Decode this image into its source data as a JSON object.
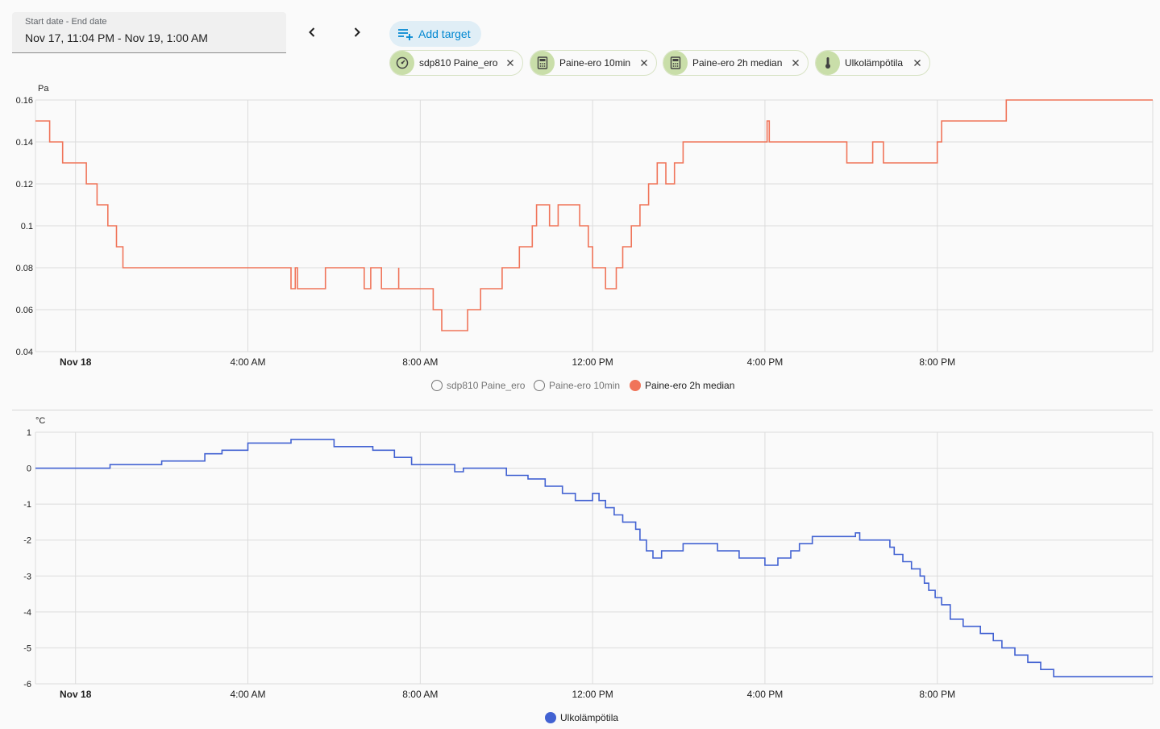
{
  "date_range": {
    "label": "Start date - End date",
    "value": "Nov 17, 11:04 PM - Nov 19, 1:00 AM"
  },
  "toolbar": {
    "add_target_label": "Add target"
  },
  "targets": [
    {
      "label": "sdp810 Paine_ero",
      "icon": "gauge-icon"
    },
    {
      "label": "Paine-ero 10min",
      "icon": "calculator-icon"
    },
    {
      "label": "Paine-ero 2h median",
      "icon": "calculator-icon"
    },
    {
      "label": "Ulkolämpötila",
      "icon": "thermometer-icon"
    }
  ],
  "chart_data": [
    {
      "type": "line",
      "ylabel": "Pa",
      "ylim": [
        0.04,
        0.16
      ],
      "yticks": [
        "0.16",
        "0.14",
        "0.12",
        "0.1",
        "0.08",
        "0.06",
        "0.04"
      ],
      "xticks": [
        "Nov 18",
        "4:00 AM",
        "8:00 AM",
        "12:00 PM",
        "4:00 PM",
        "8:00 PM"
      ],
      "x_unit": "hours since Nov 17 00:00",
      "xlim": [
        23.07,
        49.0
      ],
      "step": true,
      "grid": true,
      "legend_position": "bottom",
      "series": [
        {
          "name": "sdp810 Paine_ero",
          "visible": false,
          "color": "#757575",
          "x": [],
          "y": []
        },
        {
          "name": "Paine-ero 10min",
          "visible": false,
          "color": "#757575",
          "x": [],
          "y": []
        },
        {
          "name": "Paine-ero 2h median",
          "visible": true,
          "color": "#f07459",
          "x": [
            23.07,
            23.4,
            23.7,
            24.25,
            24.5,
            24.75,
            24.95,
            25.1,
            28.0,
            29.0,
            29.1,
            29.15,
            29.8,
            30.0,
            30.7,
            30.85,
            31.1,
            31.5,
            31.5,
            32.3,
            32.5,
            32.75,
            32.75,
            33.1,
            33.4,
            33.9,
            34.3,
            34.6,
            34.7,
            34.9,
            35.0,
            35.2,
            35.2,
            35.7,
            35.9,
            36.0,
            36.0,
            36.3,
            36.55,
            36.7,
            36.9,
            37.1,
            37.3,
            37.5,
            37.7,
            37.9,
            38.1,
            38.2,
            38.4,
            38.6,
            38.9,
            39.0,
            39.2,
            39.7,
            39.7,
            40.0,
            40.05,
            40.1,
            40.5,
            40.55,
            41.0,
            41.9,
            41.9,
            42.5,
            42.5,
            42.75,
            42.75,
            44.0,
            44.1,
            44.1,
            45.05,
            45.1,
            45.6,
            45.6,
            46.1,
            46.6,
            46.8,
            47.3,
            47.35,
            49.0
          ],
          "y": [
            0.15,
            0.14,
            0.13,
            0.12,
            0.11,
            0.1,
            0.09,
            0.08,
            0.08,
            0.07,
            0.08,
            0.07,
            0.08,
            0.08,
            0.07,
            0.08,
            0.07,
            0.08,
            0.07,
            0.06,
            0.05,
            0.05,
            0.05,
            0.06,
            0.07,
            0.08,
            0.09,
            0.1,
            0.11,
            0.11,
            0.1,
            0.11,
            0.11,
            0.1,
            0.09,
            0.08,
            0.08,
            0.07,
            0.08,
            0.09,
            0.1,
            0.11,
            0.12,
            0.13,
            0.12,
            0.13,
            0.14,
            0.14,
            0.14,
            0.14,
            0.14,
            0.14,
            0.14,
            0.14,
            0.14,
            0.14,
            0.15,
            0.14,
            0.14,
            0.14,
            0.14,
            0.14,
            0.13,
            0.14,
            0.14,
            0.13,
            0.13,
            0.14,
            0.15,
            0.15,
            0.15,
            0.15,
            0.16,
            0.16,
            0.16,
            0.16,
            0.16,
            0.16,
            0.16,
            0.16
          ]
        }
      ]
    },
    {
      "type": "line",
      "ylabel": "°C",
      "ylim": [
        -6,
        1
      ],
      "yticks": [
        "1",
        "0",
        "-1",
        "-2",
        "-3",
        "-4",
        "-5",
        "-6"
      ],
      "xticks": [
        "Nov 18",
        "4:00 AM",
        "8:00 AM",
        "12:00 PM",
        "4:00 PM",
        "8:00 PM"
      ],
      "x_unit": "hours since Nov 17 00:00",
      "xlim": [
        23.07,
        49.0
      ],
      "step": true,
      "grid": true,
      "legend_position": "bottom",
      "series": [
        {
          "name": "Ulkolämpötila",
          "visible": true,
          "color": "#4262d2",
          "x": [
            23.07,
            24.8,
            25.8,
            26.0,
            27.0,
            27.4,
            28.0,
            29.0,
            30.0,
            30.4,
            30.9,
            31.4,
            31.8,
            32.8,
            33.0,
            34.0,
            34.5,
            34.9,
            35.3,
            35.6,
            36.0,
            36.15,
            36.3,
            36.5,
            36.7,
            37.0,
            37.1,
            37.25,
            37.4,
            37.6,
            38.1,
            38.9,
            39.4,
            40.0,
            40.3,
            40.6,
            40.8,
            41.1,
            41.4,
            42.1,
            42.2,
            42.6,
            42.9,
            43.0,
            43.2,
            43.4,
            43.6,
            43.7,
            43.8,
            43.95,
            44.1,
            44.3,
            44.6,
            45.0,
            45.3,
            45.5,
            45.8,
            46.1,
            46.4,
            46.7,
            47.0,
            47.3,
            47.6,
            48.0,
            49.0
          ],
          "y": [
            0.0,
            0.1,
            0.1,
            0.2,
            0.4,
            0.5,
            0.7,
            0.8,
            0.6,
            0.6,
            0.5,
            0.3,
            0.1,
            -0.1,
            0.0,
            -0.2,
            -0.3,
            -0.5,
            -0.7,
            -0.9,
            -0.7,
            -0.9,
            -1.1,
            -1.3,
            -1.5,
            -1.7,
            -2.0,
            -2.3,
            -2.5,
            -2.3,
            -2.1,
            -2.3,
            -2.5,
            -2.7,
            -2.5,
            -2.3,
            -2.1,
            -1.9,
            -1.9,
            -1.8,
            -2.0,
            -2.0,
            -2.2,
            -2.4,
            -2.6,
            -2.8,
            -3.0,
            -3.2,
            -3.4,
            -3.6,
            -3.8,
            -4.2,
            -4.4,
            -4.6,
            -4.8,
            -5.0,
            -5.2,
            -5.4,
            -5.6,
            -5.8,
            -5.8,
            -5.8,
            -5.8,
            -5.8,
            -5.8
          ]
        }
      ]
    }
  ]
}
